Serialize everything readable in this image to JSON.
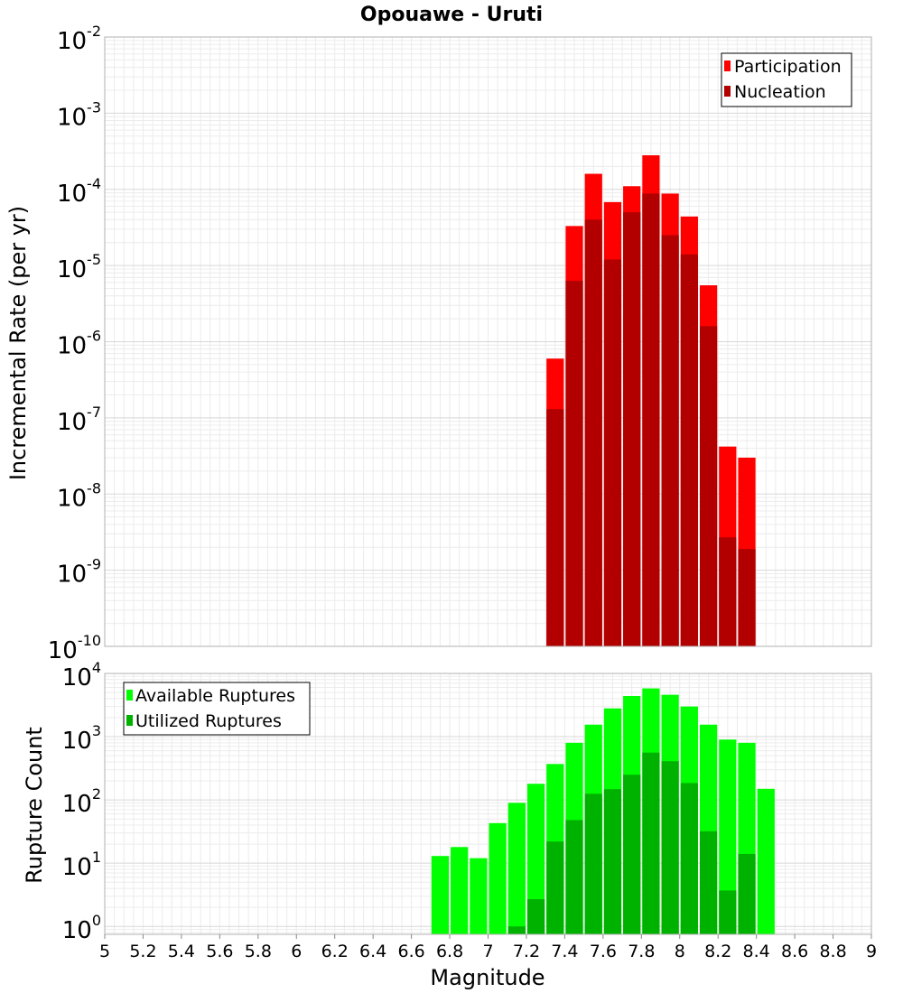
{
  "chart_data": [
    {
      "type": "bar",
      "title": "Opouawe - Uruti",
      "xlabel": "",
      "ylabel": "Incremental Rate (per yr)",
      "yscale": "log",
      "xlim": [
        5,
        9
      ],
      "ylim": [
        1e-10,
        0.01
      ],
      "yticks": [
        {
          "base": "10",
          "exp": "-10"
        },
        {
          "base": "10",
          "exp": "-9"
        },
        {
          "base": "10",
          "exp": "-8"
        },
        {
          "base": "10",
          "exp": "-7"
        },
        {
          "base": "10",
          "exp": "-6"
        },
        {
          "base": "10",
          "exp": "-5"
        },
        {
          "base": "10",
          "exp": "-4"
        },
        {
          "base": "10",
          "exp": "-3"
        },
        {
          "base": "10",
          "exp": "-2"
        }
      ],
      "grid": true,
      "legend": {
        "position": "top-right"
      },
      "bin_width": 0.1,
      "x": [
        7.35,
        7.45,
        7.55,
        7.65,
        7.75,
        7.85,
        7.95,
        8.05,
        8.15,
        8.25,
        8.35
      ],
      "series": [
        {
          "name": "Participation",
          "color": "#ff0000",
          "values": [
            6e-07,
            3.3e-05,
            0.00016,
            6.8e-05,
            0.00011,
            0.00028,
            8.8e-05,
            4.4e-05,
            5.5e-06,
            4.2e-08,
            3e-08
          ]
        },
        {
          "name": "Nucleation",
          "color": "#b20000",
          "values": [
            1.3e-07,
            6.3e-06,
            4e-05,
            1.2e-05,
            5e-05,
            8.8e-05,
            2.5e-05,
            1.4e-05,
            1.6e-06,
            2.7e-09,
            1.9e-09
          ]
        }
      ]
    },
    {
      "type": "bar",
      "title": "",
      "xlabel": "Magnitude",
      "ylabel": "Rupture Count",
      "yscale": "log",
      "xlim": [
        5,
        9
      ],
      "ylim": [
        0.75,
        10000
      ],
      "yticks": [
        {
          "base": "10",
          "exp": "0"
        },
        {
          "base": "10",
          "exp": "1"
        },
        {
          "base": "10",
          "exp": "2"
        },
        {
          "base": "10",
          "exp": "3"
        },
        {
          "base": "10",
          "exp": "4"
        }
      ],
      "xticks": [
        "5",
        "5.2",
        "5.4",
        "5.6",
        "5.8",
        "6",
        "6.2",
        "6.4",
        "6.6",
        "6.8",
        "7",
        "7.2",
        "7.4",
        "7.6",
        "7.8",
        "8",
        "8.2",
        "8.4",
        "8.6",
        "8.8",
        "9"
      ],
      "grid": true,
      "legend": {
        "position": "top-left"
      },
      "bin_width": 0.1,
      "x": [
        6.75,
        6.85,
        6.95,
        7.05,
        7.15,
        7.25,
        7.35,
        7.45,
        7.55,
        7.65,
        7.75,
        7.85,
        7.95,
        8.05,
        8.15,
        8.25,
        8.35,
        8.45
      ],
      "series": [
        {
          "name": "Available Ruptures",
          "color": "#00ff00",
          "values": [
            13,
            18,
            12,
            43,
            90,
            180,
            370,
            800,
            1550,
            2800,
            4400,
            5800,
            4600,
            3000,
            1550,
            900,
            800,
            150
          ]
        },
        {
          "name": "Utilized Ruptures",
          "color": "#00b200",
          "values": [
            0,
            0,
            0,
            0,
            1,
            2.7,
            22,
            48,
            125,
            148,
            250,
            560,
            410,
            185,
            32,
            3.7,
            14,
            0
          ]
        }
      ]
    }
  ]
}
